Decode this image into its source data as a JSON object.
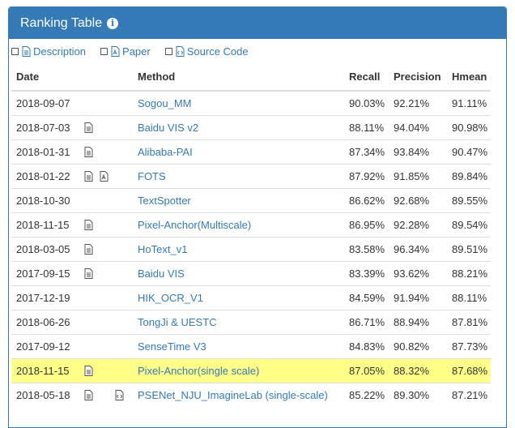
{
  "panel": {
    "title": "Ranking Table",
    "info_icon": "info-circle-icon"
  },
  "legend": {
    "description": "Description",
    "paper": "Paper",
    "source_code": "Source Code"
  },
  "columns": {
    "date": "Date",
    "method": "Method",
    "recall": "Recall",
    "precision": "Precision",
    "hmean": "Hmean"
  },
  "colors": {
    "accent": "#337ab7",
    "highlight": "#ffff88"
  },
  "rows": [
    {
      "date": "2018-09-07",
      "method": "Sogou_MM",
      "recall": "90.03%",
      "precision": "92.21%",
      "hmean": "91.11%",
      "description": false,
      "paper": false,
      "code": false
    },
    {
      "date": "2018-07-03",
      "method": "Baidu VIS v2",
      "recall": "88.11%",
      "precision": "94.04%",
      "hmean": "90.98%",
      "description": true,
      "paper": false,
      "code": false
    },
    {
      "date": "2018-01-31",
      "method": "Alibaba-PAI",
      "recall": "87.34%",
      "precision": "93.84%",
      "hmean": "90.47%",
      "description": true,
      "paper": false,
      "code": false
    },
    {
      "date": "2018-01-22",
      "method": "FOTS",
      "recall": "87.92%",
      "precision": "91.85%",
      "hmean": "89.84%",
      "description": true,
      "paper": true,
      "code": false
    },
    {
      "date": "2018-10-30",
      "method": "TextSpotter",
      "recall": "86.62%",
      "precision": "92.68%",
      "hmean": "89.55%",
      "description": false,
      "paper": false,
      "code": false
    },
    {
      "date": "2018-11-15",
      "method": "Pixel-Anchor(Multiscale)",
      "recall": "86.95%",
      "precision": "92.28%",
      "hmean": "89.54%",
      "description": true,
      "paper": false,
      "code": false
    },
    {
      "date": "2018-03-05",
      "method": "HoText_v1",
      "recall": "83.58%",
      "precision": "96.34%",
      "hmean": "89.51%",
      "description": true,
      "paper": false,
      "code": false
    },
    {
      "date": "2017-09-15",
      "method": "Baidu VIS",
      "recall": "83.39%",
      "precision": "93.62%",
      "hmean": "88.21%",
      "description": true,
      "paper": false,
      "code": false
    },
    {
      "date": "2017-12-19",
      "method": "HIK_OCR_V1",
      "recall": "84.59%",
      "precision": "91.94%",
      "hmean": "88.11%",
      "description": false,
      "paper": false,
      "code": false
    },
    {
      "date": "2018-06-26",
      "method": "TongJi & UESTC",
      "recall": "86.71%",
      "precision": "88.94%",
      "hmean": "87.81%",
      "description": false,
      "paper": false,
      "code": false
    },
    {
      "date": "2017-09-12",
      "method": "SenseTime V3",
      "recall": "84.83%",
      "precision": "90.82%",
      "hmean": "87.73%",
      "description": false,
      "paper": false,
      "code": false
    },
    {
      "date": "2018-11-15",
      "method": "Pixel-Anchor(single scale)",
      "recall": "87.05%",
      "precision": "88.32%",
      "hmean": "87.68%",
      "description": true,
      "paper": false,
      "code": false,
      "highlight": true
    },
    {
      "date": "2018-05-18",
      "method": "PSENet_NJU_ImagineLab (single-scale)",
      "recall": "85.22%",
      "precision": "89.30%",
      "hmean": "87.21%",
      "description": true,
      "paper": false,
      "code": true
    }
  ]
}
